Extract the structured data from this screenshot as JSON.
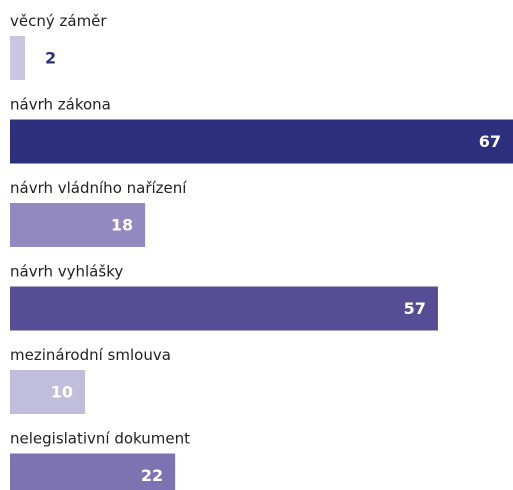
{
  "chart_data": {
    "type": "bar",
    "orientation": "horizontal",
    "categories": [
      "věcný záměr",
      "návrh zákona",
      "návrh vládního nařízení",
      "návrh vyhlášky",
      "mezinárodní smlouva",
      "nelegislativní dokument"
    ],
    "values": [
      2,
      67,
      18,
      57,
      10,
      22
    ],
    "colors": [
      "#c9c6e1",
      "#2c2f7c",
      "#9189c0",
      "#564d94",
      "#c1bddd",
      "#7d73b3"
    ]
  }
}
